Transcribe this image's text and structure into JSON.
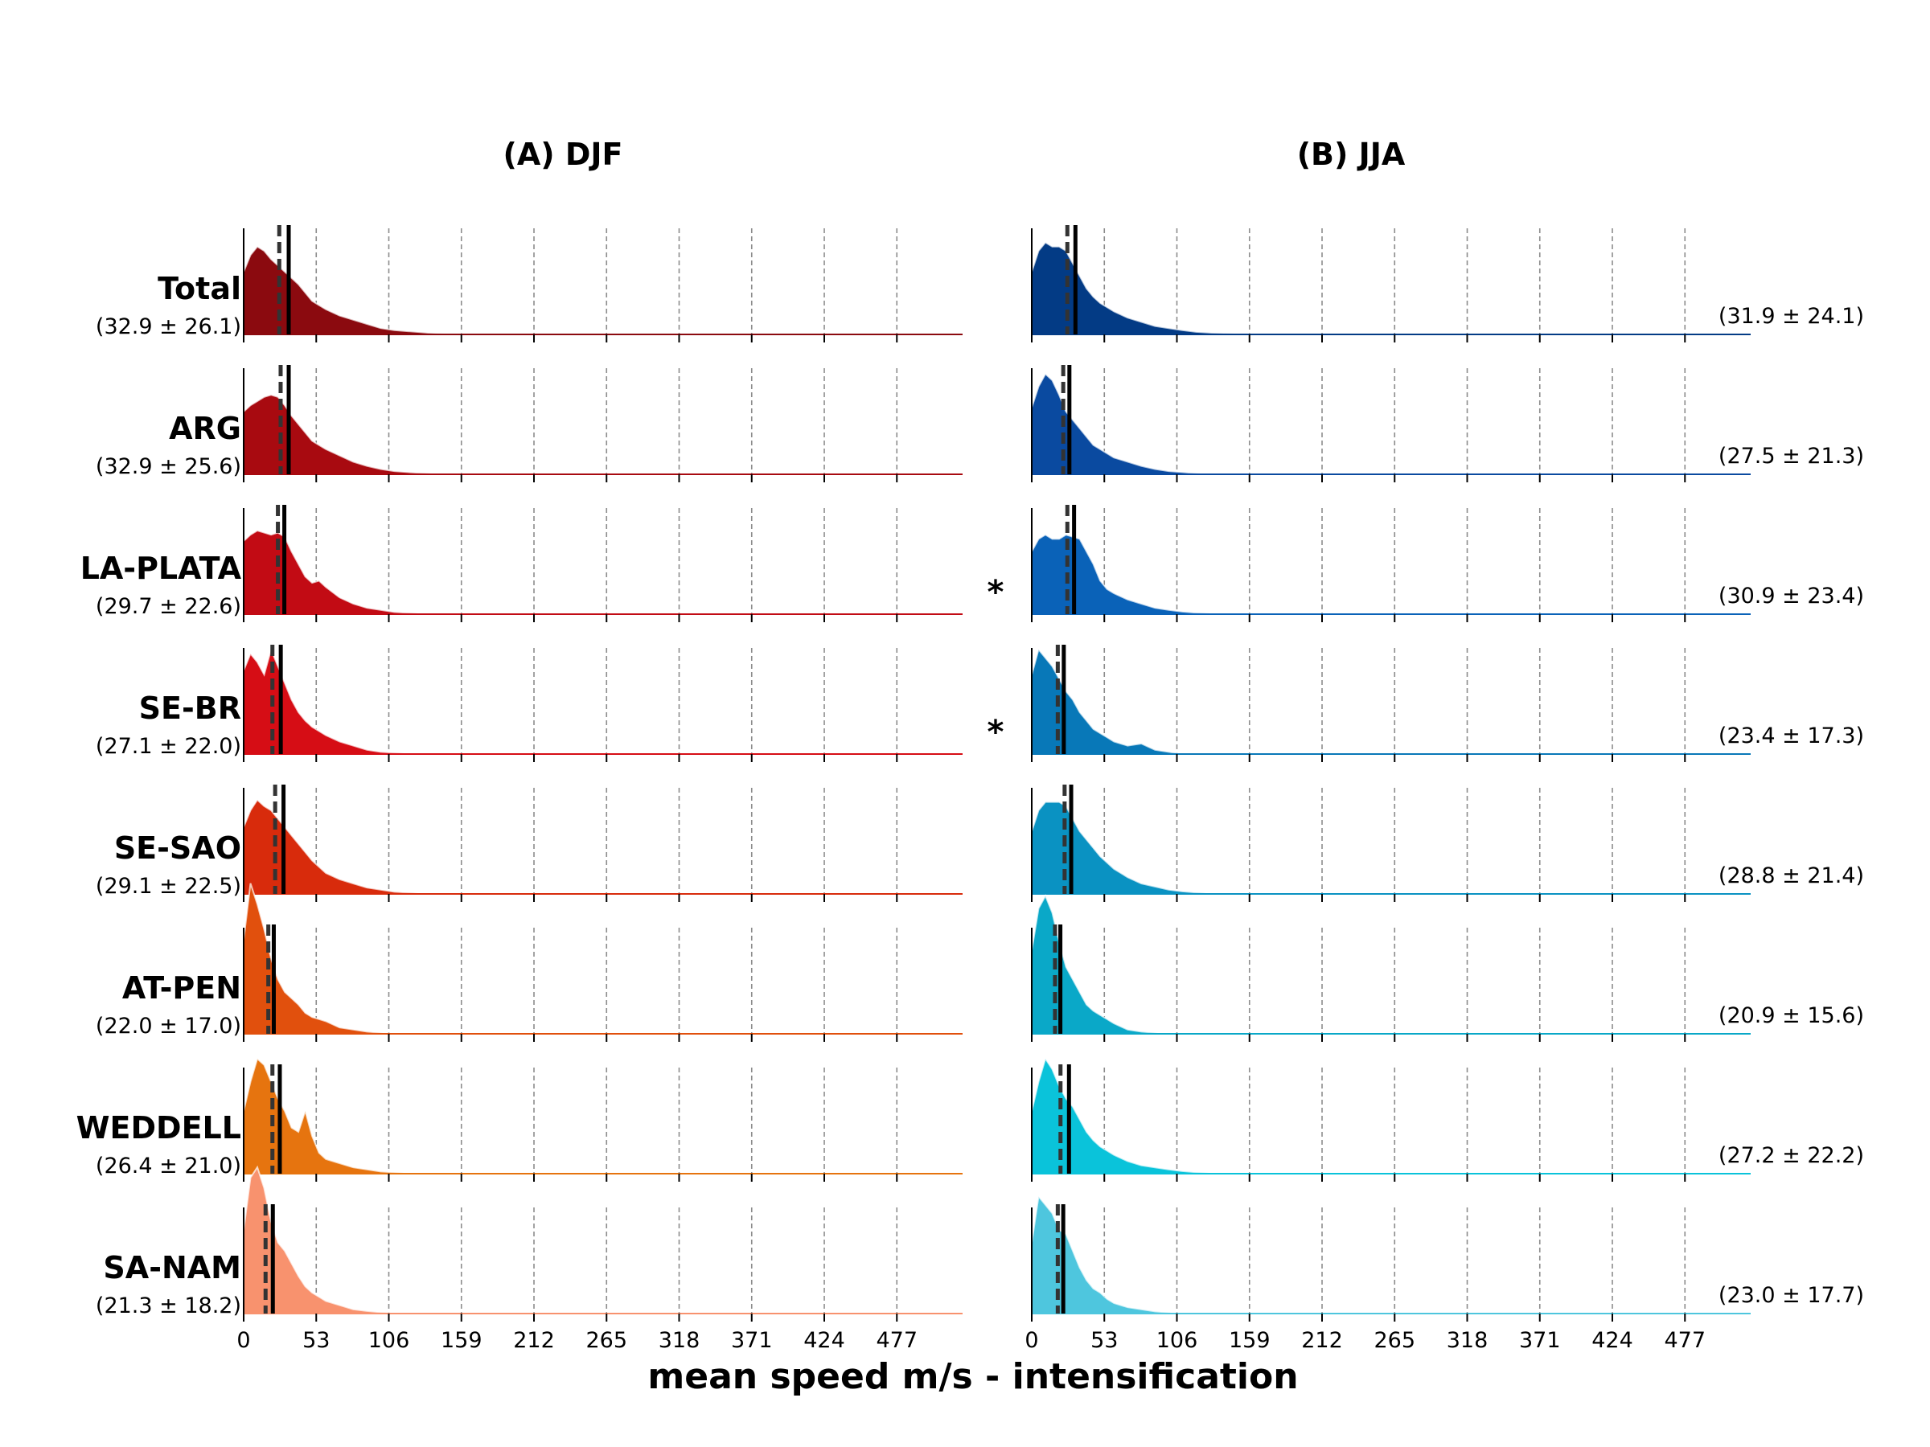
{
  "chart_data": {
    "type": "area",
    "xlabel": "mean speed m/s - intensification",
    "xticks": [
      0,
      53,
      106,
      159,
      212,
      265,
      318,
      371,
      424,
      477
    ],
    "xlim": [
      0,
      525
    ],
    "grid": "vertical dashed",
    "curve_x": [
      0,
      5,
      10,
      15,
      20,
      25,
      30,
      35,
      40,
      45,
      50,
      55,
      60,
      70,
      80,
      90,
      100,
      110,
      120,
      130,
      140,
      160
    ],
    "panels": [
      {
        "title": "(A) DJF",
        "stat_side": "left",
        "series": [
          {
            "name": "Total",
            "stat": "(32.9 ± 26.1)",
            "mean": 32.9,
            "median": 26,
            "color": "#8b0a0f",
            "density": [
              0.3,
              0.38,
              0.42,
              0.4,
              0.36,
              0.33,
              0.3,
              0.27,
              0.24,
              0.2,
              0.16,
              0.14,
              0.12,
              0.09,
              0.07,
              0.05,
              0.03,
              0.02,
              0.015,
              0.01,
              0.005,
              0.002
            ],
            "significant": false
          },
          {
            "name": "ARG",
            "stat": "(32.9 ± 25.6)",
            "mean": 32.9,
            "median": 27,
            "color": "#a80a10",
            "density": [
              0.3,
              0.33,
              0.35,
              0.37,
              0.38,
              0.37,
              0.33,
              0.28,
              0.24,
              0.2,
              0.16,
              0.14,
              0.12,
              0.09,
              0.06,
              0.04,
              0.025,
              0.015,
              0.01,
              0.006,
              0.003,
              0.001
            ],
            "significant": false
          },
          {
            "name": "LA-PLATA",
            "stat": "(29.7 ± 22.6)",
            "mean": 29.7,
            "median": 25,
            "color": "#c20b14",
            "density": [
              0.35,
              0.38,
              0.4,
              0.39,
              0.38,
              0.39,
              0.37,
              0.3,
              0.24,
              0.18,
              0.15,
              0.16,
              0.13,
              0.08,
              0.05,
              0.03,
              0.02,
              0.01,
              0.006,
              0.003,
              0.001,
              0.0
            ],
            "significant": true
          },
          {
            "name": "SE-BR",
            "stat": "(27.1 ± 22.0)",
            "mean": 27.1,
            "median": 21,
            "color": "#d60d15",
            "density": [
              0.4,
              0.48,
              0.44,
              0.38,
              0.5,
              0.42,
              0.34,
              0.26,
              0.2,
              0.16,
              0.13,
              0.11,
              0.09,
              0.06,
              0.04,
              0.02,
              0.01,
              0.006,
              0.003,
              0.0,
              0.0,
              0.0
            ],
            "significant": true
          },
          {
            "name": "SE-SAO",
            "stat": "(29.1 ± 22.5)",
            "mean": 29.1,
            "median": 23,
            "color": "#d82b0c",
            "density": [
              0.32,
              0.4,
              0.45,
              0.42,
              0.4,
              0.36,
              0.32,
              0.28,
              0.24,
              0.2,
              0.16,
              0.13,
              0.1,
              0.07,
              0.05,
              0.03,
              0.02,
              0.01,
              0.006,
              0.003,
              0.001,
              0.0
            ],
            "significant": false
          },
          {
            "name": "AT-PEN",
            "stat": "(22.0 ± 17.0)",
            "mean": 22.0,
            "median": 18,
            "color": "#e1500d",
            "density": [
              0.45,
              0.72,
              0.62,
              0.5,
              0.36,
              0.26,
              0.2,
              0.17,
              0.14,
              0.1,
              0.08,
              0.07,
              0.06,
              0.03,
              0.02,
              0.01,
              0.005,
              0.0,
              0.0,
              0.0,
              0.0,
              0.0
            ],
            "significant": false
          },
          {
            "name": "WEDDELL",
            "stat": "(26.4 ± 21.0)",
            "mean": 26.4,
            "median": 21,
            "color": "#e6740f",
            "density": [
              0.3,
              0.44,
              0.55,
              0.52,
              0.44,
              0.36,
              0.3,
              0.22,
              0.2,
              0.3,
              0.18,
              0.1,
              0.07,
              0.05,
              0.03,
              0.02,
              0.01,
              0.006,
              0.003,
              0.0,
              0.0,
              0.0
            ],
            "significant": false
          },
          {
            "name": "SA-NAM",
            "stat": "(21.3 ± 18.2)",
            "mean": 21.3,
            "median": 16,
            "color": "#f8926e",
            "density": [
              0.4,
              0.65,
              0.7,
              0.6,
              0.44,
              0.34,
              0.3,
              0.24,
              0.18,
              0.13,
              0.1,
              0.08,
              0.06,
              0.04,
              0.02,
              0.012,
              0.006,
              0.003,
              0.0,
              0.0,
              0.0,
              0.0
            ],
            "significant": false
          }
        ]
      },
      {
        "title": "(B) JJA",
        "stat_side": "right",
        "series": [
          {
            "name": "Total",
            "stat": "(31.9 ± 24.1)",
            "mean": 31.9,
            "median": 26,
            "color": "#033b85",
            "density": [
              0.3,
              0.4,
              0.44,
              0.42,
              0.42,
              0.4,
              0.34,
              0.28,
              0.22,
              0.18,
              0.15,
              0.13,
              0.11,
              0.08,
              0.06,
              0.04,
              0.03,
              0.02,
              0.012,
              0.008,
              0.005,
              0.002
            ],
            "significant": false
          },
          {
            "name": "ARG",
            "stat": "(27.5 ± 21.3)",
            "mean": 27.5,
            "median": 23,
            "color": "#0a4aa0",
            "density": [
              0.32,
              0.42,
              0.48,
              0.45,
              0.38,
              0.3,
              0.26,
              0.22,
              0.18,
              0.14,
              0.12,
              0.1,
              0.08,
              0.06,
              0.04,
              0.025,
              0.015,
              0.01,
              0.005,
              0.002,
              0.0,
              0.0
            ],
            "significant": false
          },
          {
            "name": "LA-PLATA",
            "stat": "(30.9 ± 23.4)",
            "mean": 30.9,
            "median": 26,
            "color": "#0a62b8",
            "density": [
              0.3,
              0.36,
              0.38,
              0.36,
              0.36,
              0.38,
              0.37,
              0.36,
              0.3,
              0.24,
              0.16,
              0.12,
              0.1,
              0.07,
              0.05,
              0.03,
              0.02,
              0.012,
              0.007,
              0.004,
              0.002,
              0.0
            ],
            "significant": false
          },
          {
            "name": "SE-BR",
            "stat": "(23.4 ± 17.3)",
            "mean": 23.4,
            "median": 19,
            "color": "#0878b8",
            "density": [
              0.38,
              0.5,
              0.46,
              0.42,
              0.36,
              0.3,
              0.26,
              0.2,
              0.16,
              0.12,
              0.1,
              0.08,
              0.06,
              0.04,
              0.05,
              0.02,
              0.01,
              0.0,
              0.0,
              0.0,
              0.0,
              0.0
            ],
            "significant": false
          },
          {
            "name": "SE-SAO",
            "stat": "(28.8 ± 21.4)",
            "mean": 28.8,
            "median": 24,
            "color": "#0a92c2",
            "density": [
              0.3,
              0.4,
              0.44,
              0.44,
              0.44,
              0.42,
              0.36,
              0.3,
              0.26,
              0.22,
              0.18,
              0.15,
              0.12,
              0.08,
              0.05,
              0.035,
              0.02,
              0.012,
              0.007,
              0.003,
              0.001,
              0.0
            ],
            "significant": false
          },
          {
            "name": "AT-PEN",
            "stat": "(20.9 ± 15.6)",
            "mean": 20.9,
            "median": 17,
            "color": "#0aa8c8",
            "density": [
              0.4,
              0.6,
              0.66,
              0.58,
              0.44,
              0.32,
              0.26,
              0.2,
              0.14,
              0.11,
              0.09,
              0.07,
              0.05,
              0.02,
              0.01,
              0.005,
              0.0,
              0.0,
              0.0,
              0.0,
              0.0,
              0.0
            ],
            "significant": false
          },
          {
            "name": "WEDDELL",
            "stat": "(27.2 ± 22.2)",
            "mean": 27.2,
            "median": 21,
            "color": "#0ac3da",
            "density": [
              0.3,
              0.44,
              0.55,
              0.5,
              0.42,
              0.36,
              0.32,
              0.26,
              0.2,
              0.16,
              0.13,
              0.11,
              0.09,
              0.06,
              0.04,
              0.03,
              0.02,
              0.012,
              0.007,
              0.004,
              0.002,
              0.0
            ],
            "significant": false
          },
          {
            "name": "SA-NAM",
            "stat": "(23.0 ± 17.7)",
            "mean": 23.0,
            "median": 19,
            "color": "#4ec6de",
            "density": [
              0.34,
              0.56,
              0.52,
              0.48,
              0.4,
              0.38,
              0.3,
              0.22,
              0.16,
              0.12,
              0.1,
              0.07,
              0.05,
              0.03,
              0.02,
              0.01,
              0.005,
              0.0,
              0.0,
              0.0,
              0.0,
              0.0
            ],
            "significant": false
          }
        ]
      }
    ],
    "significance_marker": "*"
  }
}
